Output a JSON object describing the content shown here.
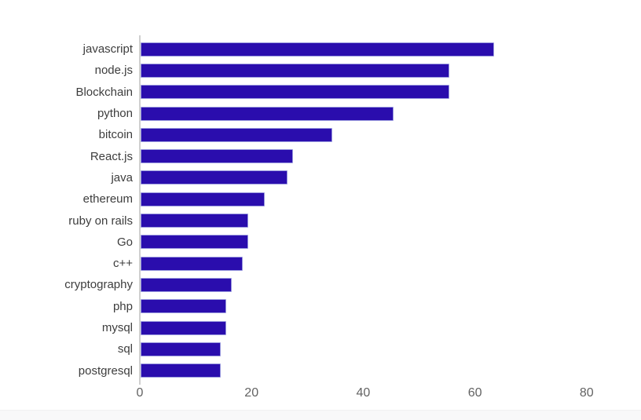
{
  "page": {
    "background_color": "#ffffff",
    "footer_strip_color": "#f8f8f9"
  },
  "chart_data": {
    "type": "bar",
    "orientation": "horizontal",
    "title": "",
    "xlabel": "",
    "ylabel": "",
    "categories": [
      "javascript",
      "node.js",
      "Blockchain",
      "python",
      "bitcoin",
      "React.js",
      "java",
      "ethereum",
      "ruby on rails",
      "Go",
      "c++",
      "cryptography",
      "php",
      "mysql",
      "sql",
      "postgresql"
    ],
    "values": [
      63,
      55,
      55,
      45,
      34,
      27,
      26,
      22,
      19,
      19,
      18,
      16,
      15,
      15,
      14,
      14
    ],
    "x_ticks": [
      0,
      20,
      40,
      60,
      80
    ],
    "xlim": [
      0,
      85
    ],
    "grid": false,
    "legend": false,
    "bar_color": "#2a0dad",
    "bar_border_color": "#9a9ade",
    "axis_line_color": "#cfcfcf",
    "tick_label_color": "#636363",
    "category_label_color": "#3d3d3d"
  }
}
